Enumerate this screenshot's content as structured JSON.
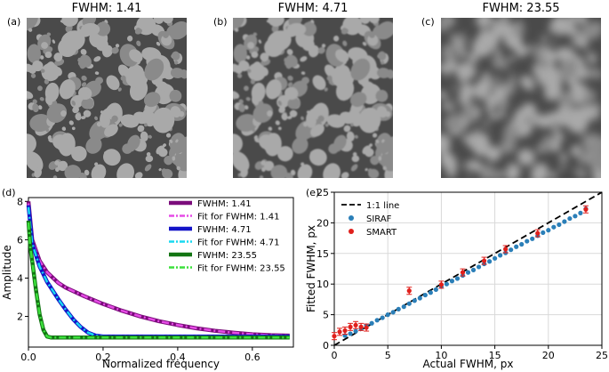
{
  "panels": {
    "a": {
      "label": "(a)",
      "title": "FWHM: 1.41"
    },
    "b": {
      "label": "(b)",
      "title": "FWHM: 4.71"
    },
    "c": {
      "label": "(c)",
      "title": "FWHM: 23.55"
    },
    "d": {
      "label": "(d)"
    },
    "e": {
      "label": "(e)"
    }
  },
  "colors": {
    "grain_light": "#a9a9a9",
    "grain_mid": "#8a8a8a",
    "matrix": "#4a4a4a",
    "series_141": "#7b0c7b",
    "fit_141": "#e64be6",
    "series_471": "#1414c8",
    "fit_471": "#19d9f0",
    "series_2355": "#137513",
    "fit_2355": "#3ce03c",
    "siraf": "#2b7fb8",
    "smart": "#e0201c"
  },
  "chart_data": [
    {
      "id": "d",
      "type": "line",
      "xlabel": "Normalized frequency",
      "ylabel": "Amplitude",
      "xlim": [
        0,
        0.71
      ],
      "ylim": [
        0.4,
        8.2
      ],
      "xticks": [
        0.0,
        0.2,
        0.4,
        0.6
      ],
      "yticks": [
        2,
        4,
        6,
        8
      ],
      "legend_position": "top-right",
      "grid": false,
      "series": [
        {
          "name": "FWHM: 1.41",
          "style": "solid",
          "color_key": "series_141",
          "x": [
            0.0,
            0.01,
            0.03,
            0.05,
            0.08,
            0.1,
            0.15,
            0.2,
            0.25,
            0.3,
            0.35,
            0.4,
            0.45,
            0.5,
            0.55,
            0.6,
            0.65,
            0.7
          ],
          "y": [
            8.0,
            6.0,
            4.9,
            4.3,
            3.75,
            3.5,
            3.05,
            2.65,
            2.3,
            2.0,
            1.75,
            1.55,
            1.38,
            1.25,
            1.15,
            1.07,
            1.02,
            1.0
          ]
        },
        {
          "name": "Fit for FWHM: 1.41",
          "style": "dashdot",
          "color_key": "fit_141",
          "x": [
            0.0,
            0.01,
            0.03,
            0.05,
            0.08,
            0.1,
            0.15,
            0.2,
            0.25,
            0.3,
            0.35,
            0.4,
            0.45,
            0.5,
            0.55,
            0.6,
            0.65,
            0.7
          ],
          "y": [
            7.9,
            6.0,
            4.9,
            4.3,
            3.75,
            3.5,
            3.05,
            2.65,
            2.3,
            2.0,
            1.75,
            1.55,
            1.38,
            1.25,
            1.15,
            1.07,
            1.02,
            1.0
          ]
        },
        {
          "name": "FWHM: 4.71",
          "style": "solid",
          "color_key": "series_471",
          "x": [
            0.0,
            0.01,
            0.03,
            0.05,
            0.08,
            0.1,
            0.12,
            0.14,
            0.16,
            0.18,
            0.2,
            0.3,
            0.4,
            0.5,
            0.6,
            0.7
          ],
          "y": [
            7.8,
            5.8,
            4.6,
            3.8,
            2.9,
            2.35,
            1.85,
            1.45,
            1.15,
            1.0,
            0.95,
            0.95,
            0.95,
            0.95,
            0.95,
            0.95
          ]
        },
        {
          "name": "Fit for FWHM: 4.71",
          "style": "dashdot",
          "color_key": "fit_471",
          "x": [
            0.0,
            0.01,
            0.03,
            0.05,
            0.08,
            0.1,
            0.12,
            0.14,
            0.16,
            0.18,
            0.2,
            0.3,
            0.4,
            0.5,
            0.6,
            0.7
          ],
          "y": [
            7.7,
            5.8,
            4.6,
            3.8,
            2.9,
            2.35,
            1.85,
            1.45,
            1.15,
            1.0,
            0.95,
            0.95,
            0.95,
            0.95,
            0.95,
            0.95
          ]
        },
        {
          "name": "FWHM: 23.55",
          "style": "solid",
          "color_key": "series_2355",
          "x": [
            0.0,
            0.005,
            0.01,
            0.02,
            0.03,
            0.04,
            0.05,
            0.06,
            0.1,
            0.3,
            0.5,
            0.7
          ],
          "y": [
            7.0,
            5.6,
            4.9,
            3.4,
            2.1,
            1.3,
            0.95,
            0.9,
            0.9,
            0.9,
            0.9,
            0.9
          ]
        },
        {
          "name": "Fit for FWHM: 23.55",
          "style": "dashdot",
          "color_key": "fit_2355",
          "x": [
            0.0,
            0.005,
            0.01,
            0.02,
            0.03,
            0.04,
            0.05,
            0.06,
            0.1,
            0.3,
            0.5,
            0.7
          ],
          "y": [
            6.9,
            5.6,
            4.9,
            3.4,
            2.1,
            1.3,
            0.95,
            0.9,
            0.9,
            0.9,
            0.9,
            0.9
          ]
        }
      ]
    },
    {
      "id": "e",
      "type": "scatter",
      "xlabel": "Actual FWHM, px",
      "ylabel": "Fitted FWHM, px",
      "xlim": [
        0,
        25
      ],
      "ylim": [
        0,
        25
      ],
      "xticks": [
        0,
        5,
        10,
        15,
        20,
        25
      ],
      "yticks": [
        0,
        5,
        10,
        15,
        20,
        25
      ],
      "legend_position": "top-left",
      "grid": true,
      "reference_line": {
        "name": "1:1 line",
        "from": [
          0,
          0
        ],
        "to": [
          25,
          25
        ]
      },
      "series": [
        {
          "name": "SIRAF",
          "color_key": "siraf",
          "x": [
            1.0,
            1.5,
            2.0,
            2.5,
            3.0,
            3.5,
            4.0,
            4.5,
            5.0,
            5.5,
            6.0,
            6.5,
            7.0,
            7.5,
            8.0,
            8.5,
            9.0,
            9.5,
            10.0,
            10.5,
            11.0,
            11.5,
            12.0,
            12.5,
            13.0,
            13.5,
            14.0,
            14.5,
            15.0,
            15.5,
            16.0,
            16.5,
            17.0,
            17.5,
            18.0,
            18.5,
            19.0,
            19.5,
            20.0,
            20.5,
            21.0,
            21.5,
            22.0,
            22.5,
            23.0,
            23.5
          ],
          "y": [
            1.6,
            1.9,
            2.3,
            2.7,
            3.2,
            3.6,
            4.1,
            4.5,
            5.0,
            5.4,
            5.9,
            6.3,
            6.8,
            7.3,
            7.7,
            8.2,
            8.6,
            9.1,
            9.6,
            10.0,
            10.5,
            10.9,
            11.4,
            11.9,
            12.3,
            12.8,
            13.3,
            13.7,
            14.2,
            14.7,
            15.1,
            15.6,
            16.1,
            16.5,
            17.0,
            17.4,
            17.9,
            18.4,
            18.8,
            19.3,
            19.7,
            20.2,
            20.7,
            21.1,
            21.6,
            22.3
          ]
        },
        {
          "name": "SMART",
          "color_key": "smart",
          "x": [
            0.0,
            0.5,
            1.0,
            1.5,
            2.0,
            2.5,
            3.0,
            7.0,
            10.0,
            12.0,
            14.0,
            16.0,
            19.0,
            23.5
          ],
          "y": [
            1.5,
            2.2,
            2.4,
            3.0,
            3.3,
            3.0,
            2.9,
            8.9,
            9.9,
            11.9,
            13.8,
            15.7,
            18.3,
            22.2
          ]
        }
      ]
    }
  ]
}
